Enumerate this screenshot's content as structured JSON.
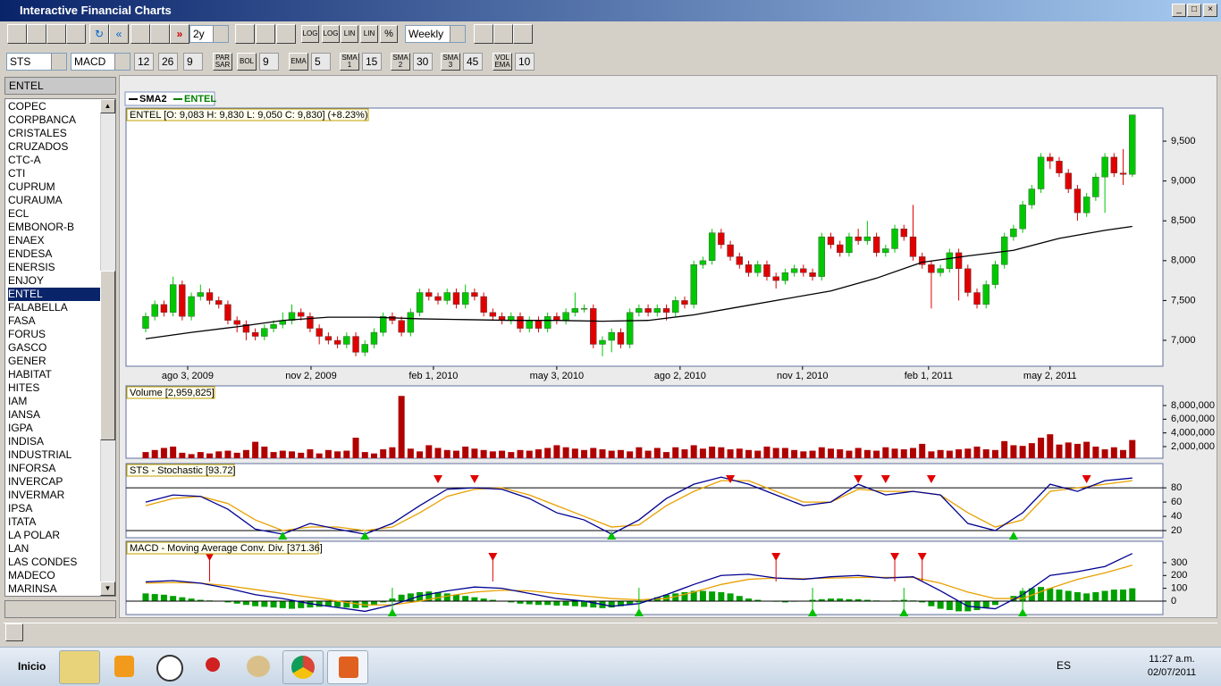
{
  "window": {
    "title": "Interactive Financial Charts"
  },
  "toolbar": {
    "period": "2y",
    "buttons": [
      "LOG",
      "LOG",
      "LIN",
      "LIN",
      "%"
    ],
    "interval": "Weekly"
  },
  "indicators": {
    "study1": "STS",
    "study2": "MACD",
    "macd_params": [
      12,
      26,
      9
    ],
    "par_sar": "PAR SAR",
    "bol": "BOL",
    "bol_period": 9,
    "ema": "EMA",
    "ema_period": 5,
    "sma1": "SMA 1",
    "sma1_period": 15,
    "sma2": "SMA 2",
    "sma2_period": 30,
    "sma3": "SMA 3",
    "sma3_period": 45,
    "vol_ema": "VOL EMA",
    "vol_ema_period": 10
  },
  "sidebar": {
    "selected": "ENTEL",
    "selected_index": 14,
    "tickers": [
      "COPEC",
      "CORPBANCA",
      "CRISTALES",
      "CRUZADOS",
      "CTC-A",
      "CTI",
      "CUPRUM",
      "CURAUMA",
      "ECL",
      "EMBONOR-B",
      "ENAEX",
      "ENDESA",
      "ENERSIS",
      "ENJOY",
      "ENTEL",
      "FALABELLA",
      "FASA",
      "FORUS",
      "GASCO",
      "GENER",
      "HABITAT",
      "HITES",
      "IAM",
      "IANSA",
      "IGPA",
      "INDISA",
      "INDUSTRIAL",
      "INFORSA",
      "INVERCAP",
      "INVERMAR",
      "IPSA",
      "ITATA",
      "LA POLAR",
      "LAN",
      "LAS CONDES",
      "MADECO",
      "MARINSA"
    ]
  },
  "chart": {
    "type": "candlestick",
    "legend": [
      {
        "name": "SMA2",
        "color": "#000000"
      },
      {
        "name": "ENTEL",
        "color": "#008000"
      }
    ],
    "price_header": "ENTEL [O: 9,083  H: 9,830  L: 9,050  C: 9,830] (+8.23%)",
    "up_color": "#00c800",
    "down_color": "#e00000",
    "xlim": [
      -2.15,
      111.35
    ],
    "xticks": [
      {
        "value": 4.6,
        "label": "ago 3, 2009"
      },
      {
        "value": 18.1,
        "label": "nov 2, 2009"
      },
      {
        "value": 31.5,
        "label": "feb 1, 2010"
      },
      {
        "value": 45,
        "label": "may 3, 2010"
      },
      {
        "value": 58.5,
        "label": "ago 2, 2010"
      },
      {
        "value": 71.9,
        "label": "nov 1, 2010"
      },
      {
        "value": 85.7,
        "label": "feb 1, 2011"
      },
      {
        "value": 99,
        "label": "may 2, 2011"
      }
    ],
    "ylim": [
      6675,
      9915
    ],
    "yticks": [
      {
        "value": 7000,
        "label": "7,000"
      },
      {
        "value": 7500,
        "label": "7,500"
      },
      {
        "value": 8000,
        "label": "8,000"
      },
      {
        "value": 8500,
        "label": "8,500"
      },
      {
        "value": 9000,
        "label": "9,000"
      },
      {
        "value": 9500,
        "label": "9,500"
      }
    ],
    "ohlc": [
      [
        7150,
        7350,
        7100,
        7300
      ],
      [
        7300,
        7500,
        7250,
        7450
      ],
      [
        7450,
        7500,
        7300,
        7350
      ],
      [
        7350,
        7800,
        7300,
        7700
      ],
      [
        7700,
        7750,
        7250,
        7300
      ],
      [
        7300,
        7600,
        7250,
        7550
      ],
      [
        7550,
        7700,
        7500,
        7600
      ],
      [
        7600,
        7650,
        7450,
        7500
      ],
      [
        7500,
        7550,
        7400,
        7450
      ],
      [
        7450,
        7500,
        7200,
        7250
      ],
      [
        7250,
        7300,
        7100,
        7200
      ],
      [
        7200,
        7250,
        7000,
        7100
      ],
      [
        7100,
        7150,
        7000,
        7050
      ],
      [
        7050,
        7200,
        7000,
        7150
      ],
      [
        7150,
        7250,
        7100,
        7200
      ],
      [
        7200,
        7350,
        7150,
        7250
      ],
      [
        7250,
        7450,
        7200,
        7350
      ],
      [
        7350,
        7400,
        7250,
        7300
      ],
      [
        7300,
        7350,
        7100,
        7150
      ],
      [
        7150,
        7200,
        6950,
        7050
      ],
      [
        7050,
        7100,
        6950,
        7000
      ],
      [
        7000,
        7050,
        6900,
        6950
      ],
      [
        6950,
        7100,
        6900,
        7050
      ],
      [
        7050,
        7100,
        6800,
        6850
      ],
      [
        6850,
        7000,
        6800,
        6950
      ],
      [
        6950,
        7150,
        6900,
        7100
      ],
      [
        7100,
        7350,
        7050,
        7300
      ],
      [
        7300,
        7350,
        7200,
        7250
      ],
      [
        7250,
        7300,
        7050,
        7100
      ],
      [
        7100,
        7400,
        7050,
        7350
      ],
      [
        7350,
        7650,
        7300,
        7600
      ],
      [
        7600,
        7650,
        7500,
        7550
      ],
      [
        7550,
        7600,
        7450,
        7500
      ],
      [
        7500,
        7650,
        7450,
        7600
      ],
      [
        7600,
        7650,
        7400,
        7450
      ],
      [
        7450,
        7700,
        7400,
        7600
      ],
      [
        7600,
        7650,
        7500,
        7550
      ],
      [
        7550,
        7600,
        7300,
        7350
      ],
      [
        7350,
        7400,
        7250,
        7300
      ],
      [
        7300,
        7350,
        7200,
        7250
      ],
      [
        7250,
        7350,
        7200,
        7300
      ],
      [
        7300,
        7350,
        7100,
        7150
      ],
      [
        7150,
        7300,
        7100,
        7250
      ],
      [
        7250,
        7300,
        7100,
        7150
      ],
      [
        7150,
        7350,
        7100,
        7300
      ],
      [
        7300,
        7350,
        7200,
        7250
      ],
      [
        7250,
        7400,
        7200,
        7350
      ],
      [
        7350,
        7600,
        7300,
        7400
      ],
      [
        7400,
        7450,
        7350,
        7400
      ],
      [
        7400,
        7450,
        6900,
        6950
      ],
      [
        6950,
        7050,
        6800,
        7000
      ],
      [
        7000,
        7150,
        6850,
        7100
      ],
      [
        7100,
        7150,
        6900,
        6950
      ],
      [
        6950,
        7400,
        6900,
        7350
      ],
      [
        7350,
        7450,
        7300,
        7400
      ],
      [
        7400,
        7450,
        7300,
        7350
      ],
      [
        7350,
        7450,
        7300,
        7400
      ],
      [
        7400,
        7450,
        7250,
        7350
      ],
      [
        7350,
        7550,
        7300,
        7500
      ],
      [
        7500,
        7550,
        7400,
        7450
      ],
      [
        7450,
        8000,
        7400,
        7950
      ],
      [
        7950,
        8050,
        7900,
        8000
      ],
      [
        8000,
        8400,
        7950,
        8350
      ],
      [
        8350,
        8400,
        8150,
        8200
      ],
      [
        8200,
        8250,
        8000,
        8050
      ],
      [
        8050,
        8100,
        7900,
        7950
      ],
      [
        7950,
        8000,
        7800,
        7850
      ],
      [
        7850,
        8000,
        7800,
        7950
      ],
      [
        7950,
        8000,
        7750,
        7800
      ],
      [
        7800,
        7850,
        7650,
        7750
      ],
      [
        7750,
        7900,
        7700,
        7850
      ],
      [
        7850,
        7950,
        7800,
        7900
      ],
      [
        7900,
        7950,
        7800,
        7850
      ],
      [
        7850,
        7900,
        7750,
        7800
      ],
      [
        7800,
        8350,
        7750,
        8300
      ],
      [
        8300,
        8350,
        8150,
        8200
      ],
      [
        8200,
        8250,
        8050,
        8100
      ],
      [
        8100,
        8350,
        8050,
        8300
      ],
      [
        8300,
        8400,
        8200,
        8250
      ],
      [
        8250,
        8500,
        8200,
        8300
      ],
      [
        8300,
        8350,
        8050,
        8100
      ],
      [
        8100,
        8200,
        8050,
        8150
      ],
      [
        8150,
        8450,
        8100,
        8400
      ],
      [
        8400,
        8450,
        8250,
        8300
      ],
      [
        8300,
        8700,
        8000,
        8050
      ],
      [
        8050,
        8100,
        7900,
        7950
      ],
      [
        7950,
        8000,
        7400,
        7850
      ],
      [
        7850,
        7950,
        7800,
        7900
      ],
      [
        7900,
        8150,
        7850,
        8100
      ],
      [
        8100,
        8150,
        7500,
        7900
      ],
      [
        7900,
        7950,
        7550,
        7600
      ],
      [
        7600,
        7650,
        7400,
        7450
      ],
      [
        7450,
        7750,
        7400,
        7700
      ],
      [
        7700,
        8000,
        7650,
        7950
      ],
      [
        7950,
        8350,
        7900,
        8300
      ],
      [
        8300,
        8450,
        8250,
        8400
      ],
      [
        8400,
        8750,
        8350,
        8700
      ],
      [
        8700,
        8950,
        8650,
        8900
      ],
      [
        8900,
        9350,
        8850,
        9300
      ],
      [
        9300,
        9350,
        9150,
        9250
      ],
      [
        9250,
        9300,
        9050,
        9100
      ],
      [
        9100,
        9150,
        8850,
        8900
      ],
      [
        8900,
        8950,
        8500,
        8600
      ],
      [
        8600,
        8850,
        8550,
        8800
      ],
      [
        8800,
        9100,
        8750,
        9050
      ],
      [
        9050,
        9350,
        8600,
        9300
      ],
      [
        9300,
        9350,
        9050,
        9100
      ],
      [
        9100,
        9400,
        8950,
        9083
      ],
      [
        9083,
        9830,
        9050,
        9830
      ]
    ],
    "sma": {
      "color": "#000000",
      "x": [
        0,
        5,
        10,
        15,
        20,
        25,
        30,
        35,
        40,
        45,
        50,
        55,
        60,
        65,
        70,
        75,
        80,
        85,
        90,
        95,
        100,
        105,
        108
      ],
      "values": [
        7020,
        7100,
        7170,
        7250,
        7290,
        7290,
        7270,
        7260,
        7250,
        7250,
        7240,
        7250,
        7320,
        7420,
        7520,
        7620,
        7780,
        7980,
        8060,
        8130,
        8280,
        8380,
        8430
      ]
    },
    "volume": {
      "title": "Volume [2,959,825]",
      "color": "#b00000",
      "ylim": [
        300000,
        10870000
      ],
      "yticks": [
        {
          "value": 2000000,
          "label": "2,000,000"
        },
        {
          "value": 4000000,
          "label": "4,000,000"
        },
        {
          "value": 6000000,
          "label": "6,000,000"
        },
        {
          "value": 8000000,
          "label": "8,000,000"
        }
      ],
      "values": [
        1200000,
        1500000,
        1800000,
        2000000,
        1100000,
        900000,
        1200000,
        1000000,
        1300000,
        1400000,
        1100000,
        1500000,
        2700000,
        2000000,
        1200000,
        1400000,
        1300000,
        1100000,
        1600000,
        1000000,
        1500000,
        1300000,
        1400000,
        3300000,
        1200000,
        1000000,
        1600000,
        1900000,
        9400000,
        1700000,
        1300000,
        2200000,
        1800000,
        1500000,
        1400000,
        2000000,
        1700000,
        1500000,
        1300000,
        1400000,
        1200000,
        1500000,
        1400000,
        1600000,
        1800000,
        2200000,
        1900000,
        1700000,
        1500000,
        1800000,
        1600000,
        1400000,
        1500000,
        1300000,
        1900000,
        1400000,
        1800000,
        1200000,
        1900000,
        1600000,
        2200000,
        1700000,
        2000000,
        1900000,
        1600000,
        1700000,
        1500000,
        1400000,
        2000000,
        1800000,
        1800000,
        1500000,
        1300000,
        1400000,
        1900000,
        1700000,
        1600000,
        1400000,
        1800000,
        1500000,
        1400000,
        1900000,
        1700000,
        1600000,
        1800000,
        2400000,
        1300000,
        1500000,
        1400000,
        1600000,
        1700000,
        2000000,
        1600000,
        1500000,
        2800000,
        2200000,
        2100000,
        2500000,
        3300000,
        3800000,
        2300000,
        2600000,
        2400000,
        2700000,
        2000000,
        1600000,
        1900000,
        1500000,
        2959825
      ]
    },
    "stochastic": {
      "title": "STS - Stochastic [93.72]",
      "k_color": "#000090",
      "d_color": "#e8a000",
      "ylim": [
        10,
        114
      ],
      "yticks": [
        20,
        40,
        60,
        80
      ],
      "levels": [
        20,
        80
      ],
      "x": [
        0,
        3,
        6,
        9,
        12,
        15,
        18,
        21,
        24,
        27,
        30,
        33,
        36,
        39,
        42,
        45,
        48,
        51,
        54,
        57,
        60,
        63,
        66,
        69,
        72,
        75,
        78,
        81,
        84,
        87,
        90,
        93,
        96,
        99,
        102,
        105,
        108
      ],
      "k": [
        60,
        70,
        68,
        50,
        22,
        15,
        30,
        22,
        15,
        30,
        55,
        78,
        80,
        78,
        65,
        45,
        35,
        15,
        35,
        65,
        85,
        95,
        85,
        70,
        55,
        60,
        85,
        70,
        75,
        70,
        30,
        20,
        45,
        85,
        75,
        90,
        93.72
      ],
      "d": [
        55,
        65,
        68,
        58,
        35,
        20,
        25,
        25,
        20,
        25,
        45,
        68,
        78,
        80,
        70,
        55,
        40,
        25,
        28,
        55,
        75,
        90,
        90,
        75,
        60,
        60,
        78,
        75,
        75,
        70,
        45,
        25,
        35,
        75,
        80,
        85,
        90
      ],
      "sell_signals": [
        32,
        36,
        64,
        78,
        81,
        86,
        103
      ],
      "buy_signals": [
        15,
        24,
        51,
        95
      ]
    },
    "macd": {
      "title": "MACD - Moving Average Conv. Div. [371.36]",
      "macd_color": "#000090",
      "signal_color": "#e8a000",
      "hist_color": "#00a000",
      "ylim": [
        -105,
        467
      ],
      "yticks": [
        0,
        100,
        200,
        300
      ],
      "levels": [
        0
      ],
      "x": [
        0,
        3,
        6,
        9,
        12,
        15,
        18,
        21,
        24,
        27,
        30,
        33,
        36,
        39,
        42,
        45,
        48,
        51,
        54,
        57,
        60,
        63,
        66,
        69,
        72,
        75,
        78,
        81,
        84,
        87,
        90,
        93,
        96,
        99,
        102,
        105,
        108
      ],
      "macd": [
        150,
        160,
        140,
        100,
        50,
        20,
        -20,
        -50,
        -80,
        -30,
        40,
        80,
        110,
        100,
        60,
        20,
        0,
        -40,
        -20,
        50,
        130,
        200,
        210,
        180,
        170,
        190,
        200,
        180,
        190,
        80,
        -40,
        -60,
        50,
        200,
        230,
        270,
        371.36
      ],
      "signal": [
        140,
        145,
        140,
        120,
        90,
        60,
        30,
        0,
        -30,
        -30,
        0,
        40,
        70,
        85,
        80,
        60,
        40,
        20,
        10,
        20,
        70,
        130,
        170,
        180,
        175,
        180,
        185,
        185,
        185,
        140,
        70,
        20,
        20,
        100,
        170,
        220,
        280
      ],
      "histogram": [
        60,
        55,
        50,
        40,
        30,
        20,
        10,
        5,
        0,
        -10,
        -20,
        -30,
        -40,
        -45,
        -50,
        -55,
        -60,
        -55,
        -50,
        -45,
        -40,
        -45,
        -50,
        -55,
        -50,
        -30,
        -10,
        20,
        50,
        60,
        70,
        75,
        70,
        60,
        50,
        40,
        30,
        20,
        10,
        0,
        -10,
        -20,
        -25,
        -30,
        -30,
        -35,
        -35,
        -40,
        -45,
        -50,
        -55,
        -50,
        -40,
        -30,
        -10,
        10,
        30,
        50,
        60,
        70,
        80,
        80,
        75,
        70,
        60,
        40,
        20,
        10,
        0,
        -5,
        -10,
        -5,
        0,
        10,
        15,
        20,
        20,
        15,
        15,
        10,
        5,
        0,
        5,
        10,
        5,
        -10,
        -40,
        -60,
        -70,
        -80,
        -80,
        -70,
        -50,
        -30,
        0,
        40,
        80,
        100,
        110,
        100,
        90,
        80,
        70,
        60,
        70,
        80,
        90,
        90,
        100
      ],
      "sell_signals": [
        7,
        38,
        69,
        82,
        85
      ],
      "buy_signals": [
        27,
        54,
        73,
        83,
        96
      ]
    }
  },
  "taskbar": {
    "start": "Inicio",
    "language": "ES",
    "time": "11:27 a.m.",
    "date": "02/07/2011"
  }
}
